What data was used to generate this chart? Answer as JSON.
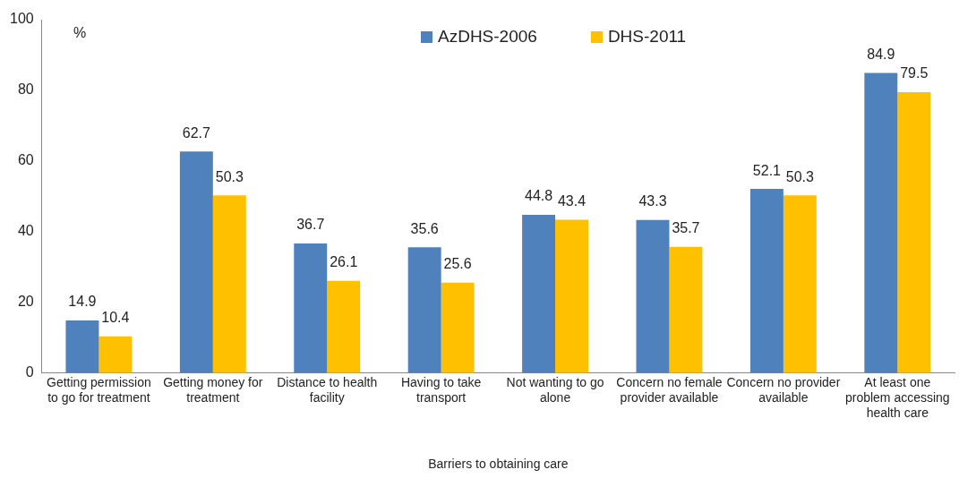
{
  "chart_data": {
    "type": "bar",
    "xlabel": "Barriers to obtaining care",
    "ylabel": "%",
    "categories": [
      "Getting permission to go for treatment",
      "Getting money for treatment",
      "Distance to health facility",
      "Having to take transport",
      "Not wanting to go alone",
      "Concern no female provider available",
      "Concern no provider available",
      "At least one problem accessing health care"
    ],
    "series": [
      {
        "name": "AzDHS-2006",
        "color": "#4f81bd",
        "values": [
          14.9,
          62.7,
          36.7,
          35.6,
          44.8,
          43.3,
          52.1,
          84.9
        ]
      },
      {
        "name": "DHS-2011",
        "color": "#ffc000",
        "values": [
          10.4,
          50.3,
          26.1,
          25.6,
          43.4,
          35.7,
          50.3,
          79.5
        ]
      }
    ],
    "ylim": [
      0,
      100
    ],
    "yticks": [
      0,
      20,
      40,
      60,
      80,
      100
    ],
    "grid": false,
    "legend": "top",
    "data_labels": true
  }
}
